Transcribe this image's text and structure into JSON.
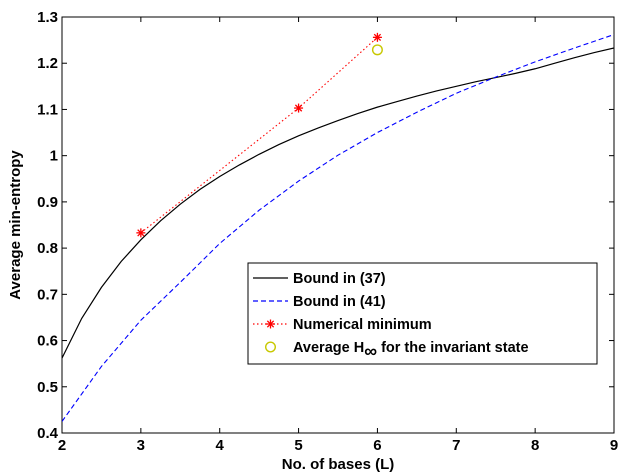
{
  "chart_data": {
    "type": "line",
    "xlabel": "No. of bases (L)",
    "ylabel": "Average min-entropy",
    "xlim": [
      2,
      9
    ],
    "ylim": [
      0.4,
      1.3
    ],
    "xticks": [
      2,
      3,
      4,
      5,
      6,
      7,
      8,
      9
    ],
    "yticks": [
      0.4,
      0.5,
      0.6,
      0.7,
      0.8,
      0.9,
      1,
      1.1,
      1.2,
      1.3
    ],
    "xtick_labels": [
      "2",
      "3",
      "4",
      "5",
      "6",
      "7",
      "8",
      "9"
    ],
    "ytick_labels": [
      "0.4",
      "0.5",
      "0.6",
      "0.7",
      "0.8",
      "0.9",
      "1",
      "1.1",
      "1.2",
      "1.3"
    ],
    "grid": false,
    "legend_position": "bottom-right",
    "series": [
      {
        "name": "Bound in (37)",
        "color": "#000000",
        "style": "solid",
        "marker": "none",
        "x": [
          2,
          2.25,
          2.5,
          2.75,
          3,
          3.25,
          3.5,
          3.75,
          4,
          4.25,
          4.5,
          4.75,
          5,
          5.25,
          5.5,
          5.75,
          6,
          6.25,
          6.5,
          6.75,
          7,
          7.25,
          7.5,
          7.75,
          8,
          8.25,
          8.5,
          8.75,
          9
        ],
        "y": [
          0.562,
          0.648,
          0.715,
          0.771,
          0.818,
          0.859,
          0.895,
          0.927,
          0.955,
          0.98,
          1.003,
          1.024,
          1.043,
          1.06,
          1.076,
          1.091,
          1.105,
          1.117,
          1.129,
          1.14,
          1.15,
          1.16,
          1.169,
          1.178,
          1.188,
          1.2,
          1.212,
          1.223,
          1.233
        ]
      },
      {
        "name": "Bound in (41)",
        "color": "#0000ff",
        "style": "dashed",
        "marker": "none",
        "x": [
          2,
          2.5,
          3,
          3.5,
          4,
          4.5,
          5,
          5.5,
          6,
          6.5,
          7,
          7.5,
          8,
          8.5,
          9
        ],
        "y": [
          0.425,
          0.544,
          0.644,
          0.726,
          0.81,
          0.882,
          0.945,
          1.001,
          1.05,
          1.094,
          1.135,
          1.17,
          1.203,
          1.233,
          1.262
        ]
      },
      {
        "name": "Numerical minimum",
        "color": "#ff0000",
        "style": "dotted",
        "marker": "asterisk",
        "x": [
          3,
          5,
          6
        ],
        "y": [
          0.833,
          1.103,
          1.256
        ]
      },
      {
        "name": "Average H∞ for the invariant state",
        "color": "#c8c800",
        "style": "none",
        "marker": "circle",
        "x": [
          6
        ],
        "y": [
          1.229
        ]
      }
    ],
    "legend": [
      {
        "text": "Bound in (37)"
      },
      {
        "text": "Bound in (41)"
      },
      {
        "text": "Numerical minimum"
      },
      {
        "text_main": "Average H",
        "text_sub": "∞",
        "text_rest": " for the invariant state"
      }
    ]
  }
}
